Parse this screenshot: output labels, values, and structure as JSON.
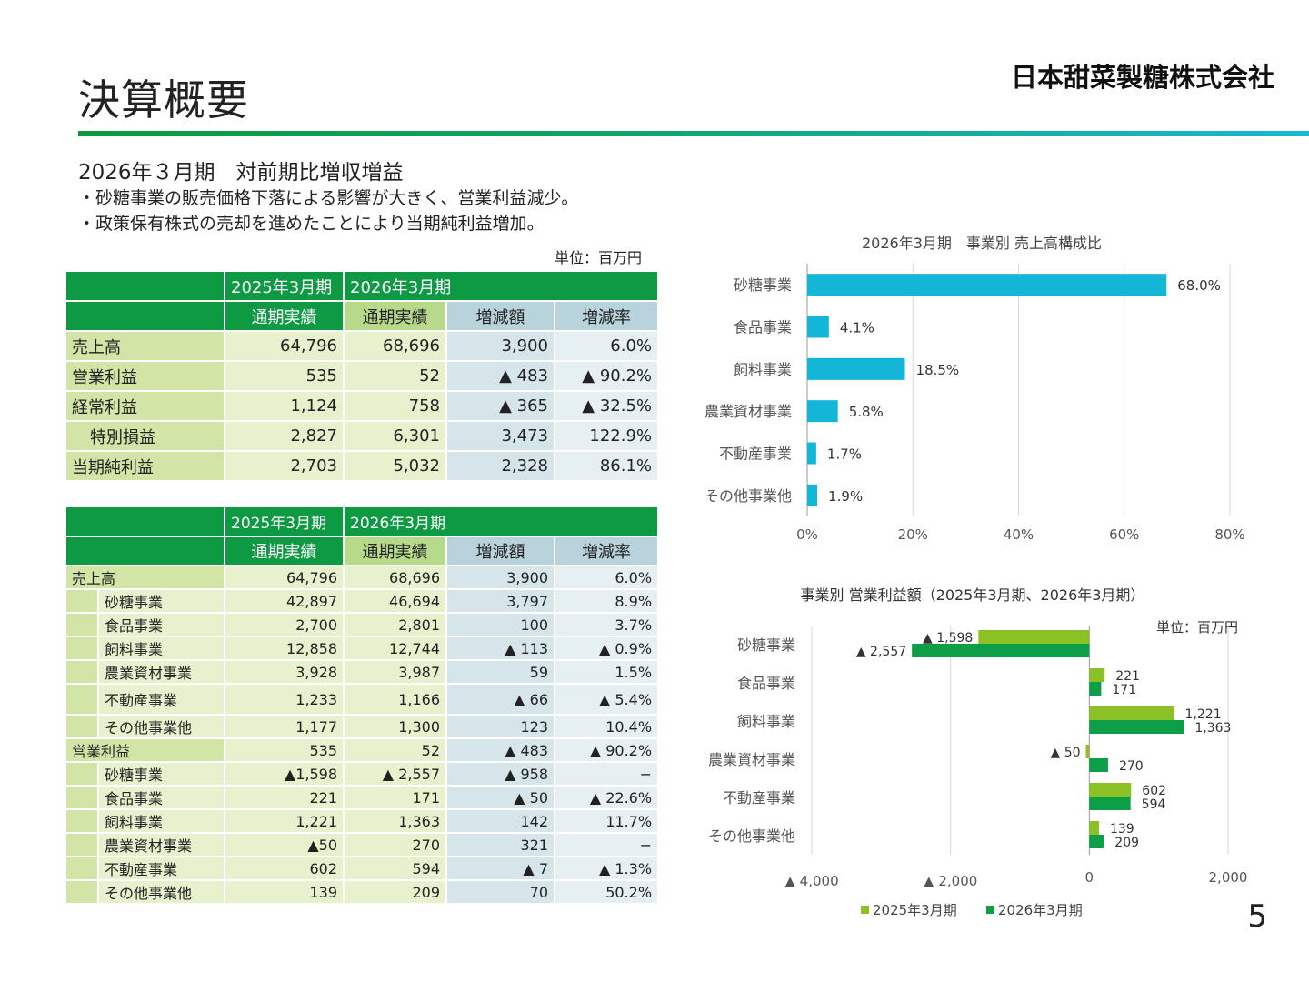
{
  "page": {
    "title": "決算概要",
    "company": "日本甜菜製糖株式会社",
    "subtitle": "2026年３月期　対前期比増収増益",
    "bullets": [
      "・砂糖事業の販売価格下落による影響が大きく、営業利益減少。",
      "・政策保有株式の売却を進めたことにより当期純利益増加。"
    ],
    "unit": "単位：百万円",
    "page_number": "5"
  },
  "headers": {
    "fy2025": "2025年3月期",
    "fy2026": "2026年3月期",
    "full_year": "通期実績",
    "change": "増減額",
    "rate": "増減率"
  },
  "summary_rows": [
    {
      "label": "売上高",
      "v2025": "64,796",
      "v2026": "68,696",
      "change": "3,900",
      "rate": "6.0%",
      "indent": false
    },
    {
      "label": "営業利益",
      "v2025": "535",
      "v2026": "52",
      "change": "▲ 483",
      "rate": "▲ 90.2%",
      "indent": false
    },
    {
      "label": "経常利益",
      "v2025": "1,124",
      "v2026": "758",
      "change": "▲ 365",
      "rate": "▲ 32.5%",
      "indent": false
    },
    {
      "label": "特別損益",
      "v2025": "2,827",
      "v2026": "6,301",
      "change": "3,473",
      "rate": "122.9%",
      "indent": true
    },
    {
      "label": "当期純利益",
      "v2025": "2,703",
      "v2026": "5,032",
      "change": "2,328",
      "rate": "86.1%",
      "indent": false
    }
  ],
  "segment_groups": [
    {
      "label": "売上高",
      "v2025": "64,796",
      "v2026": "68,696",
      "change": "3,900",
      "rate": "6.0%",
      "items": [
        {
          "label": "砂糖事業",
          "v2025": "42,897",
          "v2026": "46,694",
          "change": "3,797",
          "rate": "8.9%"
        },
        {
          "label": "食品事業",
          "v2025": "2,700",
          "v2026": "2,801",
          "change": "100",
          "rate": "3.7%"
        },
        {
          "label": "飼料事業",
          "v2025": "12,858",
          "v2026": "12,744",
          "change": "▲ 113",
          "rate": "▲ 0.9%"
        },
        {
          "label": "農業資材事業",
          "v2025": "3,928",
          "v2026": "3,987",
          "change": "59",
          "rate": "1.5%"
        },
        {
          "label": "不動産事業",
          "v2025": "1,233",
          "v2026": "1,166",
          "change": "▲ 66",
          "rate": "▲ 5.4%"
        },
        {
          "label": "その他事業他",
          "v2025": "1,177",
          "v2026": "1,300",
          "change": "123",
          "rate": "10.4%"
        }
      ]
    },
    {
      "label": "営業利益",
      "v2025": "535",
      "v2026": "52",
      "change": "▲ 483",
      "rate": "▲ 90.2%",
      "items": [
        {
          "label": "砂糖事業",
          "v2025": "▲1,598",
          "v2026": "▲ 2,557",
          "change": "▲ 958",
          "rate": "−"
        },
        {
          "label": "食品事業",
          "v2025": "221",
          "v2026": "171",
          "change": "▲ 50",
          "rate": "▲ 22.6%"
        },
        {
          "label": "飼料事業",
          "v2025": "1,221",
          "v2026": "1,363",
          "change": "142",
          "rate": "11.7%"
        },
        {
          "label": "農業資材事業",
          "v2025": "▲50",
          "v2026": "270",
          "change": "321",
          "rate": "−"
        },
        {
          "label": "不動産事業",
          "v2025": "602",
          "v2026": "594",
          "change": "▲ 7",
          "rate": "▲ 1.3%"
        },
        {
          "label": "その他事業他",
          "v2025": "139",
          "v2026": "209",
          "change": "70",
          "rate": "50.2%"
        }
      ]
    }
  ],
  "chart_data": [
    {
      "type": "bar",
      "orientation": "horizontal",
      "title": "2026年3月期　事業別 売上高構成比",
      "categories": [
        "砂糖事業",
        "食品事業",
        "飼料事業",
        "農業資材事業",
        "不動産事業",
        "その他事業他"
      ],
      "values": [
        68.0,
        4.1,
        18.5,
        5.8,
        1.7,
        1.9
      ],
      "data_labels": [
        "68.0%",
        "4.1%",
        "18.5%",
        "5.8%",
        "1.7%",
        "1.9%"
      ],
      "xlim": [
        0,
        80
      ],
      "x_ticks": [
        0,
        20,
        40,
        60,
        80
      ],
      "x_tick_labels": [
        "0%",
        "20%",
        "40%",
        "60%",
        "80%"
      ],
      "grid": true,
      "color": "#14b6d8"
    },
    {
      "type": "bar",
      "orientation": "horizontal",
      "title": "事業別 営業利益額（2025年3月期、2026年3月期）",
      "unit": "単位：百万円",
      "categories": [
        "砂糖事業",
        "食品事業",
        "飼料事業",
        "農業資材事業",
        "不動産事業",
        "その他事業他"
      ],
      "series": [
        {
          "name": "2025年3月期",
          "values": [
            -1598,
            221,
            1221,
            -50,
            602,
            139
          ],
          "labels": [
            "▲ 1,598",
            "221",
            "1,221",
            "▲ 50",
            "602",
            "139"
          ],
          "color": "#8cc125"
        },
        {
          "name": "2026年3月期",
          "values": [
            -2557,
            171,
            1363,
            270,
            594,
            209
          ],
          "labels": [
            "▲ 2,557",
            "171",
            "1,363",
            "270",
            "594",
            "209"
          ],
          "color": "#0d9e48"
        }
      ],
      "xlim": [
        -4000,
        2000
      ],
      "x_ticks": [
        -4000,
        -2000,
        0,
        2000
      ],
      "x_tick_labels": [
        "▲ 4,000",
        "▲ 2,000",
        "0",
        "2,000"
      ],
      "grid": true,
      "legend": "bottom"
    }
  ]
}
